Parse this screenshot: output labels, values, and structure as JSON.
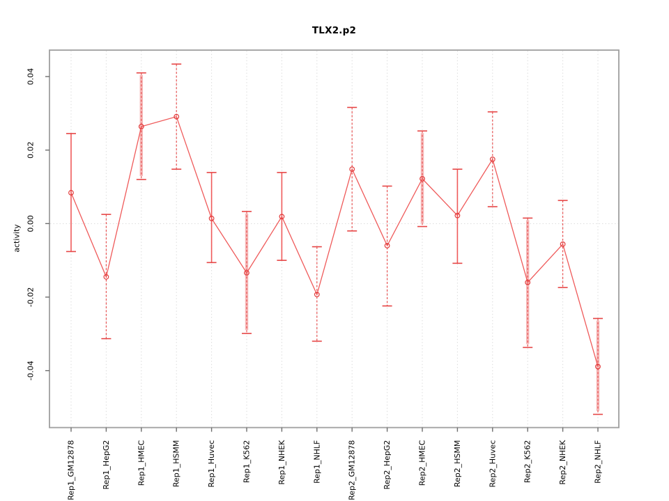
{
  "title": "TLX2.p2",
  "chart_data": {
    "type": "line",
    "title": "TLX2.p2",
    "xlabel": "",
    "ylabel": "activity",
    "grid": true,
    "zero_line": true,
    "legend": "none",
    "ylim": [
      -0.0555,
      0.0472
    ],
    "y_ticks": [
      {
        "value": 0.04,
        "label": "0.04"
      },
      {
        "value": 0.02,
        "label": "0.02"
      },
      {
        "value": 0.0,
        "label": "0.00"
      },
      {
        "value": -0.02,
        "label": "-0.02"
      },
      {
        "value": -0.04,
        "label": "-0.04"
      }
    ],
    "categories": [
      "Rep1_GM12878",
      "Rep1_HepG2",
      "Rep1_HMEC",
      "Rep1_HSMM",
      "Rep1_Huvec",
      "Rep1_K562",
      "Rep1_NHEK",
      "Rep1_NHLF",
      "Rep2_GM12878",
      "Rep2_HepG2",
      "Rep2_HMEC",
      "Rep2_HSMM",
      "Rep2_Huvec",
      "Rep2_K562",
      "Rep2_NHEK",
      "Rep2_NHLF"
    ],
    "series": [
      {
        "name": "activity",
        "marker": "open-circle",
        "values": [
          0.0084,
          -0.0145,
          0.0264,
          0.0291,
          0.0014,
          -0.0134,
          0.0019,
          -0.0193,
          0.0148,
          -0.006,
          0.0122,
          0.0022,
          0.0175,
          -0.016,
          -0.0056,
          -0.0389
        ],
        "err_high": [
          0.0245,
          0.0025,
          0.041,
          0.0434,
          0.0139,
          0.0033,
          0.0139,
          -0.0063,
          0.0316,
          0.0102,
          0.0252,
          0.0148,
          0.0304,
          0.0015,
          0.0063,
          -0.0258
        ],
        "err_low": [
          -0.0076,
          -0.0313,
          0.012,
          0.0148,
          -0.0106,
          -0.0299,
          -0.01,
          -0.032,
          -0.002,
          -0.0224,
          -0.0008,
          -0.0108,
          0.0046,
          -0.0337,
          -0.0174,
          -0.0519
        ],
        "bar_style": [
          "solid",
          "dashed",
          "band",
          "dashed",
          "solid",
          "band",
          "solid",
          "dashed",
          "dashed",
          "dashed",
          "band",
          "solid",
          "dashed",
          "band",
          "dashed",
          "band"
        ]
      }
    ],
    "colors": {
      "line": "#ef5a5a",
      "point": "#e23b3b",
      "cap": "#e64545",
      "band": "#f6b2b2",
      "grid": "#dcdcdc",
      "axis": "#9e9e9e",
      "tick": "#6e6e6e",
      "text": "#000000"
    }
  }
}
